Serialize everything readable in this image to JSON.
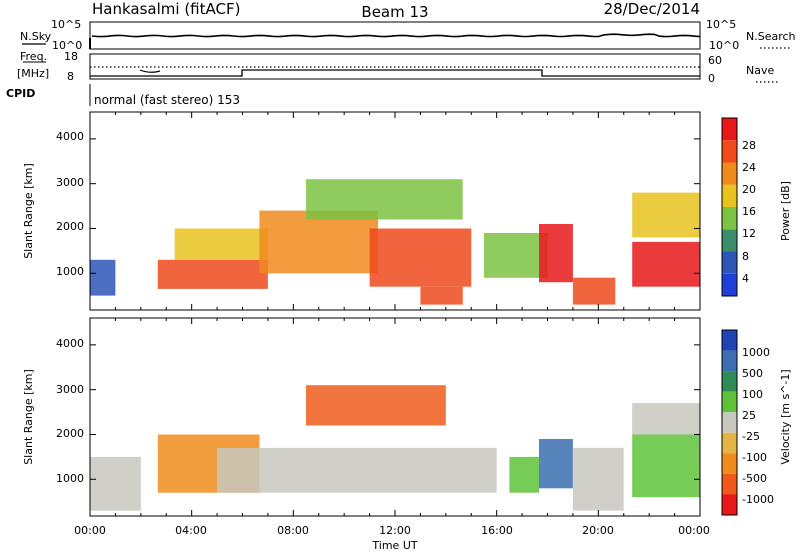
{
  "header": {
    "station": "Hankasalmi (fitACF)",
    "beam": "Beam 13",
    "date": "28/Dec/2014"
  },
  "top_panels": {
    "nsky_label": "N.Sky",
    "nsearch_label": "N.Search",
    "noise_ticks_left": [
      "10^5",
      "10^0"
    ],
    "noise_ticks_right": [
      "10^5",
      "10^0"
    ],
    "freq_label_line1": "Freq.",
    "freq_label_line2": "[MHz]",
    "freq_ticks": [
      "18",
      "8"
    ],
    "nave_label": "Nave",
    "nave_ticks": [
      "60",
      "0"
    ],
    "cpid_label": "CPID",
    "cpid_text": "normal (fast stereo) 153"
  },
  "axes": {
    "xlabel": "Time UT",
    "x_ticks": [
      "00:00",
      "04:00",
      "08:00",
      "12:00",
      "16:00",
      "20:00",
      "00:00"
    ],
    "y_label_power": "Slant Range [km]",
    "y_label_velocity": "Slant Range [km]",
    "y_ticks": [
      "1000",
      "2000",
      "3000",
      "4000"
    ]
  },
  "colorbars": {
    "power": {
      "label": "Power [dB]",
      "ticks": [
        "4",
        "8",
        "12",
        "16",
        "20",
        "24",
        "28"
      ],
      "colors": [
        "#1f3fd9",
        "#2d56b8",
        "#3d8c6a",
        "#7cc243",
        "#e8c21f",
        "#f08a1d",
        "#ef4a1c",
        "#e8171a"
      ]
    },
    "velocity": {
      "label": "Velocity [m s^-1]",
      "ticks": [
        "1000",
        "500",
        "100",
        "25",
        "-25",
        "-100",
        "-500",
        "-1000"
      ],
      "colors": [
        "#1f45b5",
        "#3b6fb0",
        "#2e8b57",
        "#5fc23a",
        "#c8c8c0",
        "#e6b445",
        "#f08c1c",
        "#ef5a1b",
        "#e8171a"
      ]
    }
  },
  "chart_data": [
    {
      "type": "heatmap",
      "name": "power",
      "xlabel": "Time UT",
      "ylabel": "Slant Range [km]",
      "xlim": [
        "00:00",
        "24:00"
      ],
      "ylim": [
        180,
        4600
      ],
      "colorbar_label": "Power [dB]",
      "colorbar_range": [
        0,
        30
      ],
      "regions": [
        {
          "t_start": "00:00",
          "t_end": "01:00",
          "r_min": 500,
          "r_max": 1300,
          "value": 6
        },
        {
          "t_start": "02:40",
          "t_end": "07:00",
          "r_min": 650,
          "r_max": 1300,
          "value": 26
        },
        {
          "t_start": "03:20",
          "t_end": "07:00",
          "r_min": 1300,
          "r_max": 2000,
          "value": 18
        },
        {
          "t_start": "06:40",
          "t_end": "11:20",
          "r_min": 1000,
          "r_max": 2400,
          "value": 22
        },
        {
          "t_start": "08:30",
          "t_end": "14:40",
          "r_min": 2200,
          "r_max": 3100,
          "value": 14
        },
        {
          "t_start": "11:00",
          "t_end": "15:00",
          "r_min": 700,
          "r_max": 2000,
          "value": 24
        },
        {
          "t_start": "13:00",
          "t_end": "14:40",
          "r_min": 300,
          "r_max": 700,
          "value": 26
        },
        {
          "t_start": "15:30",
          "t_end": "18:00",
          "r_min": 900,
          "r_max": 1900,
          "value": 12
        },
        {
          "t_start": "17:40",
          "t_end": "19:00",
          "r_min": 800,
          "r_max": 2100,
          "value": 28
        },
        {
          "t_start": "19:00",
          "t_end": "20:40",
          "r_min": 300,
          "r_max": 900,
          "value": 26
        },
        {
          "t_start": "21:20",
          "t_end": "24:00",
          "r_min": 700,
          "r_max": 1700,
          "value": 29
        },
        {
          "t_start": "21:20",
          "t_end": "24:00",
          "r_min": 1800,
          "r_max": 2800,
          "value": 18
        }
      ]
    },
    {
      "type": "heatmap",
      "name": "velocity",
      "xlabel": "Time UT",
      "ylabel": "Slant Range [km]",
      "xlim": [
        "00:00",
        "24:00"
      ],
      "ylim": [
        180,
        4600
      ],
      "colorbar_label": "Velocity [m s^-1]",
      "colorbar_range": [
        -1000,
        1000
      ],
      "regions": [
        {
          "t_start": "00:00",
          "t_end": "02:00",
          "r_min": 300,
          "r_max": 1500,
          "value": 0
        },
        {
          "t_start": "02:40",
          "t_end": "06:40",
          "r_min": 700,
          "r_max": 2000,
          "value": -100
        },
        {
          "t_start": "05:00",
          "t_end": "16:00",
          "r_min": 700,
          "r_max": 1700,
          "value": 0
        },
        {
          "t_start": "08:30",
          "t_end": "14:00",
          "r_min": 2200,
          "r_max": 3100,
          "value": -500
        },
        {
          "t_start": "16:30",
          "t_end": "17:40",
          "r_min": 700,
          "r_max": 1500,
          "value": 60
        },
        {
          "t_start": "17:40",
          "t_end": "19:00",
          "r_min": 800,
          "r_max": 1900,
          "value": 300
        },
        {
          "t_start": "19:00",
          "t_end": "21:00",
          "r_min": 300,
          "r_max": 1700,
          "value": 0
        },
        {
          "t_start": "21:20",
          "t_end": "24:00",
          "r_min": 600,
          "r_max": 2000,
          "value": 60
        },
        {
          "t_start": "21:20",
          "t_end": "24:00",
          "r_min": 2000,
          "r_max": 2700,
          "value": 0
        }
      ]
    }
  ]
}
